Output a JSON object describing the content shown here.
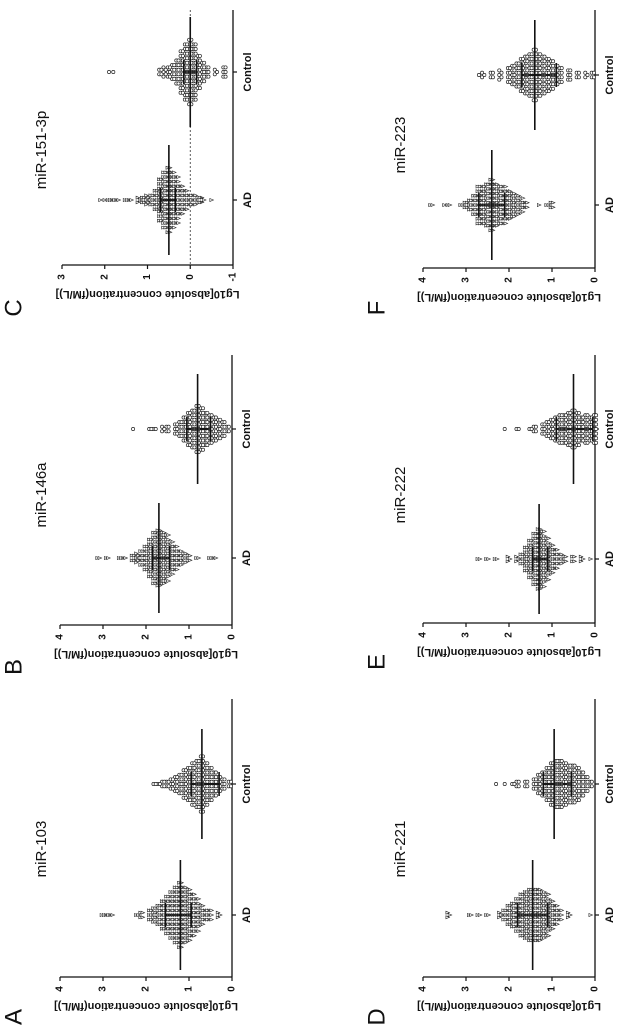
{
  "chart_data": [
    {
      "letter": "C",
      "title": "miR-151-3p",
      "type": "scatter",
      "ylabel": "Lg10[absolute concentration(fM/L)]",
      "ylim": [
        -1,
        3
      ],
      "yticks": [
        "-1",
        "0",
        "1",
        "2",
        "3"
      ],
      "reference_line": 0,
      "categories": [
        "AD",
        "Control"
      ],
      "groups": [
        {
          "name": "AD",
          "marker": "triangle",
          "median": 0.5,
          "q1": 0.35,
          "q3": 0.7,
          "bins": [
            [
              -0.5,
              1
            ],
            [
              -0.3,
              3
            ],
            [
              -0.2,
              4
            ],
            [
              -0.1,
              6
            ],
            [
              0,
              6
            ],
            [
              0.1,
              10
            ],
            [
              0.2,
              14
            ],
            [
              0.3,
              22
            ],
            [
              0.4,
              26
            ],
            [
              0.5,
              30
            ],
            [
              0.6,
              26
            ],
            [
              0.7,
              20
            ],
            [
              0.8,
              10
            ],
            [
              0.9,
              6
            ],
            [
              1.0,
              5
            ],
            [
              1.1,
              4
            ],
            [
              1.2,
              3
            ],
            [
              1.4,
              2
            ],
            [
              1.5,
              2
            ],
            [
              1.7,
              2
            ],
            [
              1.8,
              2
            ],
            [
              1.9,
              2
            ],
            [
              2.0,
              1
            ],
            [
              2.1,
              1
            ]
          ]
        },
        {
          "name": "Control",
          "marker": "circle",
          "median": 0,
          "q1": -0.15,
          "q3": 0.15,
          "bins": [
            [
              -0.8,
              6
            ],
            [
              -0.6,
              3
            ],
            [
              -0.4,
              6
            ],
            [
              -0.3,
              10
            ],
            [
              -0.2,
              16
            ],
            [
              -0.1,
              26
            ],
            [
              0,
              30
            ],
            [
              0.1,
              26
            ],
            [
              0.2,
              20
            ],
            [
              0.3,
              12
            ],
            [
              0.4,
              8
            ],
            [
              0.5,
              6
            ],
            [
              0.6,
              5
            ],
            [
              0.7,
              4
            ],
            [
              1.8,
              1
            ],
            [
              1.9,
              1
            ]
          ]
        }
      ]
    },
    {
      "letter": "F",
      "title": "miR-223",
      "type": "scatter",
      "ylabel": "Lg10[absolute concentration(fM/L)]",
      "ylim": [
        0,
        4
      ],
      "yticks": [
        "0",
        "1",
        "2",
        "3",
        "4"
      ],
      "categories": [
        "AD",
        "Control"
      ],
      "groups": [
        {
          "name": "AD",
          "marker": "triangle",
          "median": 2.4,
          "q1": 2.1,
          "q3": 2.7,
          "bins": [
            [
              1.0,
              4
            ],
            [
              1.1,
              2
            ],
            [
              1.3,
              1
            ],
            [
              1.6,
              4
            ],
            [
              1.7,
              8
            ],
            [
              1.8,
              10
            ],
            [
              1.9,
              12
            ],
            [
              2.0,
              14
            ],
            [
              2.1,
              18
            ],
            [
              2.2,
              18
            ],
            [
              2.3,
              20
            ],
            [
              2.4,
              24
            ],
            [
              2.5,
              20
            ],
            [
              2.6,
              18
            ],
            [
              2.7,
              18
            ],
            [
              2.8,
              10
            ],
            [
              2.9,
              6
            ],
            [
              3.0,
              4
            ],
            [
              3.1,
              2
            ],
            [
              3.4,
              2
            ],
            [
              3.5,
              1
            ],
            [
              3.8,
              2
            ]
          ]
        },
        {
          "name": "Control",
          "marker": "circle",
          "median": 1.4,
          "q1": 0.9,
          "q3": 1.7,
          "bins": [
            [
              0.05,
              4
            ],
            [
              0.2,
              3
            ],
            [
              0.4,
              4
            ],
            [
              0.6,
              6
            ],
            [
              0.8,
              8
            ],
            [
              0.9,
              10
            ],
            [
              1.0,
              14
            ],
            [
              1.1,
              16
            ],
            [
              1.2,
              18
            ],
            [
              1.3,
              20
            ],
            [
              1.4,
              24
            ],
            [
              1.5,
              20
            ],
            [
              1.6,
              18
            ],
            [
              1.7,
              16
            ],
            [
              1.8,
              12
            ],
            [
              1.9,
              10
            ],
            [
              2.0,
              8
            ],
            [
              2.2,
              5
            ],
            [
              2.4,
              4
            ],
            [
              2.6,
              3
            ],
            [
              2.7,
              1
            ]
          ]
        }
      ]
    },
    {
      "letter": "B",
      "title": "miR-146a",
      "type": "scatter",
      "ylabel": "Lg10[absolute concentration(fM/L)]",
      "ylim": [
        0,
        4
      ],
      "yticks": [
        "0",
        "1",
        "2",
        "3",
        "4"
      ],
      "categories": [
        "AD",
        "Control"
      ],
      "groups": [
        {
          "name": "AD",
          "marker": "triangle",
          "median": 1.7,
          "q1": 1.45,
          "q3": 1.85,
          "bins": [
            [
              0.4,
              2
            ],
            [
              0.5,
              2
            ],
            [
              0.8,
              2
            ],
            [
              1.0,
              4
            ],
            [
              1.1,
              6
            ],
            [
              1.2,
              8
            ],
            [
              1.3,
              12
            ],
            [
              1.4,
              16
            ],
            [
              1.5,
              22
            ],
            [
              1.6,
              24
            ],
            [
              1.7,
              26
            ],
            [
              1.8,
              24
            ],
            [
              1.9,
              18
            ],
            [
              2.0,
              12
            ],
            [
              2.1,
              8
            ],
            [
              2.2,
              5
            ],
            [
              2.3,
              4
            ],
            [
              2.5,
              2
            ],
            [
              2.6,
              2
            ],
            [
              2.9,
              2
            ],
            [
              3.1,
              2
            ]
          ]
        },
        {
          "name": "Control",
          "marker": "circle",
          "median": 0.8,
          "q1": 0.5,
          "q3": 1.05,
          "bins": [
            [
              0.1,
              4
            ],
            [
              0.2,
              8
            ],
            [
              0.3,
              10
            ],
            [
              0.4,
              12
            ],
            [
              0.5,
              14
            ],
            [
              0.6,
              16
            ],
            [
              0.7,
              20
            ],
            [
              0.8,
              22
            ],
            [
              0.9,
              18
            ],
            [
              1.0,
              16
            ],
            [
              1.1,
              12
            ],
            [
              1.2,
              8
            ],
            [
              1.3,
              6
            ],
            [
              1.5,
              4
            ],
            [
              1.6,
              3
            ],
            [
              1.8,
              2
            ],
            [
              1.9,
              2
            ],
            [
              2.3,
              1
            ]
          ]
        }
      ]
    },
    {
      "letter": "E",
      "title": "miR-222",
      "type": "scatter",
      "ylabel": "Lg10[absolute concentration(fM/L)]",
      "ylim": [
        0,
        4
      ],
      "yticks": [
        "0",
        "1",
        "2",
        "3",
        "4"
      ],
      "categories": [
        "AD",
        "Control"
      ],
      "groups": [
        {
          "name": "AD",
          "marker": "triangle",
          "median": 1.3,
          "q1": 1.1,
          "q3": 1.45,
          "bins": [
            [
              0.1,
              1
            ],
            [
              0.3,
              3
            ],
            [
              0.5,
              4
            ],
            [
              0.7,
              4
            ],
            [
              0.8,
              6
            ],
            [
              0.9,
              10
            ],
            [
              1.0,
              14
            ],
            [
              1.1,
              20
            ],
            [
              1.2,
              26
            ],
            [
              1.3,
              28
            ],
            [
              1.4,
              24
            ],
            [
              1.5,
              18
            ],
            [
              1.6,
              12
            ],
            [
              1.7,
              6
            ],
            [
              1.8,
              3
            ],
            [
              2.0,
              3
            ],
            [
              2.3,
              2
            ],
            [
              2.5,
              2
            ],
            [
              2.7,
              2
            ]
          ]
        },
        {
          "name": "Control",
          "marker": "circle",
          "median": 0.5,
          "q1": 0.05,
          "q3": 0.9,
          "bins": [
            [
              0.0,
              14
            ],
            [
              0.1,
              12
            ],
            [
              0.2,
              14
            ],
            [
              0.3,
              12
            ],
            [
              0.4,
              16
            ],
            [
              0.5,
              18
            ],
            [
              0.6,
              16
            ],
            [
              0.7,
              14
            ],
            [
              0.8,
              14
            ],
            [
              0.9,
              12
            ],
            [
              1.0,
              10
            ],
            [
              1.1,
              8
            ],
            [
              1.2,
              6
            ],
            [
              1.4,
              4
            ],
            [
              1.5,
              2
            ],
            [
              1.8,
              2
            ],
            [
              2.1,
              1
            ]
          ]
        }
      ]
    },
    {
      "letter": "A",
      "title": "miR-103",
      "type": "scatter",
      "ylabel": "Lg10[absolute concentration(fM/L)]",
      "ylim": [
        0,
        4
      ],
      "yticks": [
        "0",
        "1",
        "2",
        "3",
        "4"
      ],
      "categories": [
        "AD",
        "Control"
      ],
      "groups": [
        {
          "name": "AD",
          "marker": "triangle",
          "median": 1.2,
          "q1": 0.95,
          "q3": 1.55,
          "bins": [
            [
              0.3,
              3
            ],
            [
              0.5,
              6
            ],
            [
              0.6,
              6
            ],
            [
              0.7,
              10
            ],
            [
              0.8,
              16
            ],
            [
              0.9,
              20
            ],
            [
              1.0,
              24
            ],
            [
              1.1,
              26
            ],
            [
              1.2,
              30
            ],
            [
              1.3,
              26
            ],
            [
              1.4,
              22
            ],
            [
              1.5,
              18
            ],
            [
              1.6,
              14
            ],
            [
              1.7,
              10
            ],
            [
              1.8,
              8
            ],
            [
              1.9,
              6
            ],
            [
              2.1,
              4
            ],
            [
              2.2,
              2
            ],
            [
              2.8,
              2
            ],
            [
              2.9,
              2
            ],
            [
              3.0,
              2
            ]
          ]
        },
        {
          "name": "Control",
          "marker": "circle",
          "median": 0.7,
          "q1": 0.3,
          "q3": 0.95,
          "bins": [
            [
              0.05,
              4
            ],
            [
              0.2,
              6
            ],
            [
              0.3,
              8
            ],
            [
              0.4,
              12
            ],
            [
              0.5,
              16
            ],
            [
              0.6,
              20
            ],
            [
              0.7,
              26
            ],
            [
              0.8,
              22
            ],
            [
              0.9,
              20
            ],
            [
              1.0,
              16
            ],
            [
              1.1,
              14
            ],
            [
              1.2,
              10
            ],
            [
              1.3,
              8
            ],
            [
              1.4,
              6
            ],
            [
              1.5,
              4
            ],
            [
              1.6,
              4
            ],
            [
              1.7,
              2
            ],
            [
              1.8,
              2
            ]
          ]
        }
      ]
    },
    {
      "letter": "D",
      "title": "miR-221",
      "type": "scatter",
      "ylabel": "Lg10[absolute concentration(fM/L)]",
      "ylim": [
        0,
        4
      ],
      "yticks": [
        "0",
        "1",
        "2",
        "3",
        "4"
      ],
      "categories": [
        "AD",
        "Control"
      ],
      "groups": [
        {
          "name": "AD",
          "marker": "triangle",
          "median": 1.45,
          "q1": 1.1,
          "q3": 1.8,
          "bins": [
            [
              0.1,
              1
            ],
            [
              0.6,
              3
            ],
            [
              0.8,
              6
            ],
            [
              0.9,
              10
            ],
            [
              1.0,
              14
            ],
            [
              1.1,
              20
            ],
            [
              1.2,
              22
            ],
            [
              1.3,
              24
            ],
            [
              1.4,
              24
            ],
            [
              1.5,
              24
            ],
            [
              1.6,
              22
            ],
            [
              1.7,
              20
            ],
            [
              1.8,
              16
            ],
            [
              1.9,
              12
            ],
            [
              2.0,
              10
            ],
            [
              2.1,
              6
            ],
            [
              2.2,
              3
            ],
            [
              2.5,
              2
            ],
            [
              2.7,
              2
            ],
            [
              2.9,
              2
            ],
            [
              3.4,
              3
            ]
          ]
        },
        {
          "name": "Control",
          "marker": "circle",
          "median": 0.95,
          "q1": 0.55,
          "q3": 1.2,
          "bins": [
            [
              0.1,
              4
            ],
            [
              0.2,
              8
            ],
            [
              0.3,
              12
            ],
            [
              0.4,
              16
            ],
            [
              0.5,
              18
            ],
            [
              0.6,
              18
            ],
            [
              0.7,
              20
            ],
            [
              0.8,
              22
            ],
            [
              0.9,
              22
            ],
            [
              1.0,
              20
            ],
            [
              1.1,
              16
            ],
            [
              1.2,
              12
            ],
            [
              1.3,
              10
            ],
            [
              1.4,
              6
            ],
            [
              1.6,
              4
            ],
            [
              1.8,
              4
            ],
            [
              1.9,
              2
            ],
            [
              2.1,
              1
            ],
            [
              2.3,
              1
            ]
          ]
        }
      ]
    }
  ]
}
